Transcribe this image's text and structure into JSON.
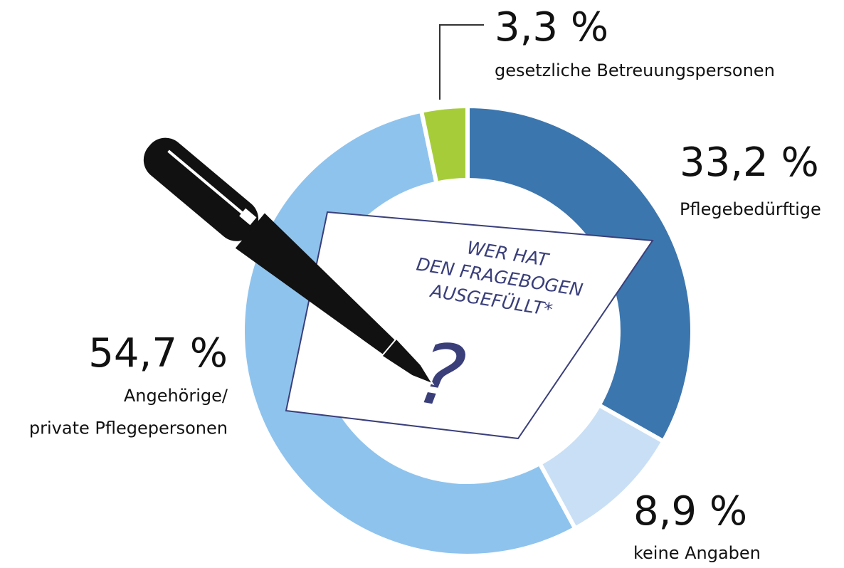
{
  "chart_data": {
    "type": "donut",
    "categories": [
      "Pflegebedürftige",
      "keine Angaben",
      "Angehörige/\nprivate Pflegepersonen",
      "gesetzliche Betreuungspersonen"
    ],
    "values": [
      33.2,
      8.9,
      54.7,
      3.3
    ],
    "value_labels": [
      "33,2 %",
      "8,9 %",
      "54,7 %",
      "3,3 %"
    ],
    "colors": [
      "#3c76ae",
      "#c9dff5",
      "#8ec3ee",
      "#a6cd39"
    ],
    "center_text": [
      "WER HAT",
      "DEN FRAGEBOGEN",
      "AUSGEFÜLLT*"
    ],
    "center_symbol": "?"
  }
}
